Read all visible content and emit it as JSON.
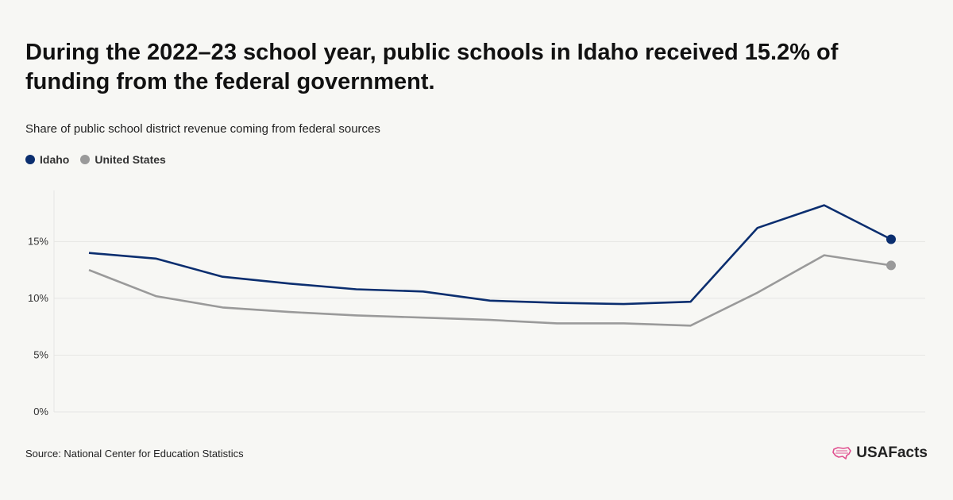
{
  "title": "During the 2022–23 school year, public schools in Idaho received 15.2% of funding from the federal government.",
  "subtitle": "Share of public school district revenue coming from federal sources",
  "source": "Source: National Center for Education Statistics",
  "logo_text": "USAFacts",
  "colors": {
    "idaho": "#0b2e6f",
    "united_states": "#9a9a9a",
    "grid": "#e6e6e3",
    "logo_mark": "#e0508f"
  },
  "chart_data": {
    "type": "line",
    "title": "",
    "xlabel": "",
    "ylabel": "",
    "ylim": [
      0,
      19.5
    ],
    "yticks": [
      0,
      5,
      10,
      15
    ],
    "ytick_labels": [
      "0%",
      "5%",
      "10%",
      "15%"
    ],
    "grid": true,
    "legend_position": "top-left",
    "x": [
      1,
      2,
      3,
      4,
      5,
      6,
      7,
      8,
      9,
      10,
      11,
      12,
      13
    ],
    "series": [
      {
        "name": "Idaho",
        "values": [
          14.0,
          13.5,
          11.9,
          11.3,
          10.8,
          10.6,
          9.8,
          9.6,
          9.5,
          9.7,
          16.2,
          18.2,
          15.2
        ]
      },
      {
        "name": "United States",
        "values": [
          12.5,
          10.2,
          9.2,
          8.8,
          8.5,
          8.3,
          8.1,
          7.8,
          7.8,
          7.6,
          10.5,
          13.8,
          12.9
        ]
      }
    ]
  }
}
